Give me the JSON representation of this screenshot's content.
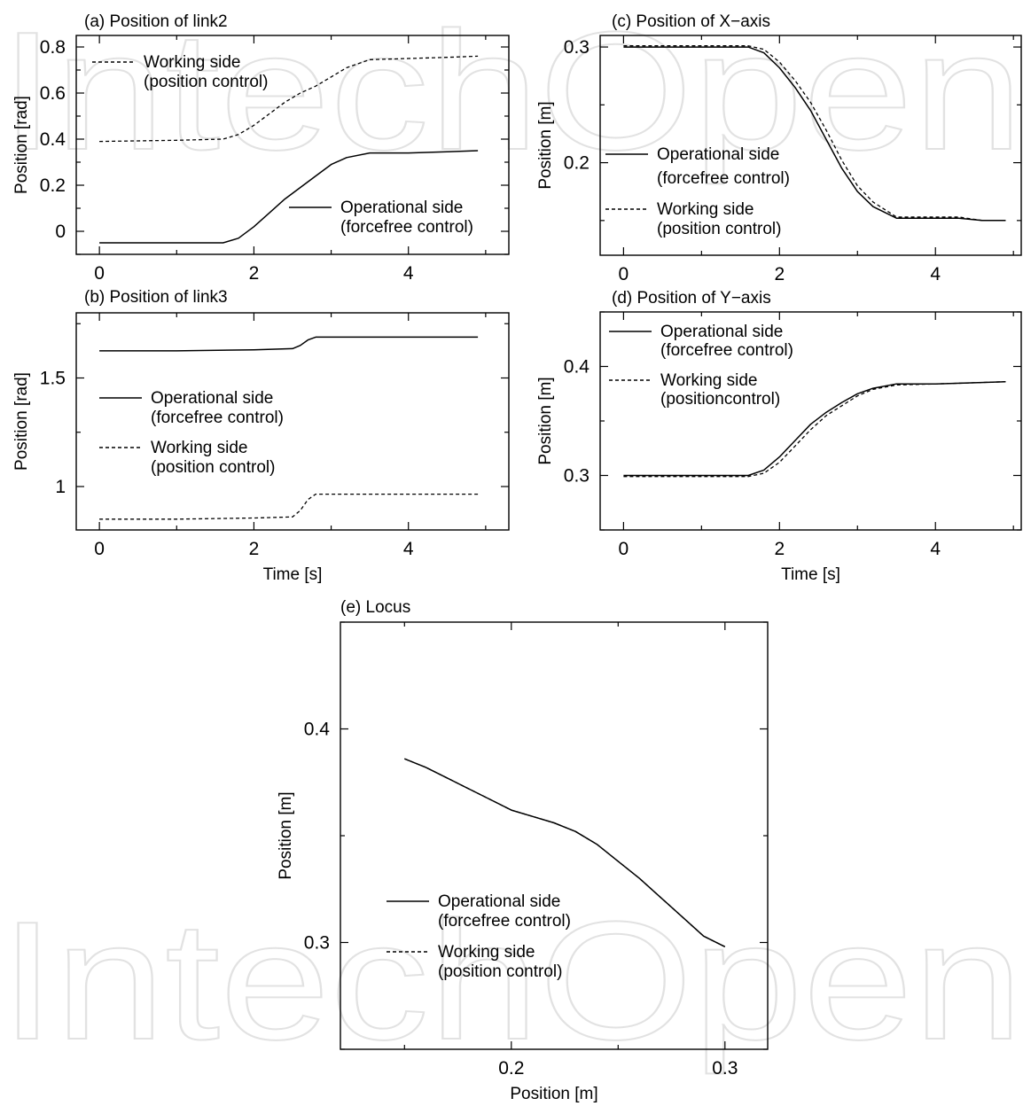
{
  "watermark": "IntechOpen",
  "chart_data": [
    {
      "id": "a",
      "type": "line",
      "title": "(a) Position of link2",
      "xlabel": "",
      "ylabel": "Position [rad]",
      "xlim": [
        -0.3,
        5.3
      ],
      "ylim": [
        -0.1,
        0.85
      ],
      "xticks": [
        0,
        2,
        4
      ],
      "yticks": [
        0,
        0.2,
        0.4,
        0.6,
        0.8
      ],
      "xtick_labels": [
        "0",
        "2",
        "4"
      ],
      "ytick_labels": [
        "0",
        "0.2",
        "0.4",
        "0.6",
        "0.8"
      ],
      "legend": [
        {
          "series": 1,
          "lines": [
            "Working side",
            "(position control)"
          ],
          "placement": "top-left"
        },
        {
          "series": 0,
          "lines": [
            "Operational side",
            "(forcefree control)"
          ],
          "placement": "bottom-right"
        }
      ],
      "series": [
        {
          "name": "Operational side (forcefree control)",
          "style": "solid",
          "x": [
            0,
            1.0,
            1.6,
            1.8,
            2.0,
            2.2,
            2.4,
            2.6,
            2.8,
            3.0,
            3.2,
            3.5,
            4.0,
            4.5,
            4.9
          ],
          "y": [
            -0.05,
            -0.05,
            -0.05,
            -0.03,
            0.02,
            0.08,
            0.14,
            0.19,
            0.24,
            0.29,
            0.32,
            0.34,
            0.34,
            0.345,
            0.35
          ]
        },
        {
          "name": "Working side (position control)",
          "style": "dashed",
          "x": [
            0,
            1.0,
            1.6,
            1.8,
            2.0,
            2.2,
            2.4,
            2.6,
            2.8,
            3.0,
            3.2,
            3.5,
            4.0,
            4.5,
            4.9
          ],
          "y": [
            0.39,
            0.395,
            0.4,
            0.42,
            0.46,
            0.51,
            0.56,
            0.6,
            0.63,
            0.67,
            0.71,
            0.745,
            0.75,
            0.755,
            0.76
          ]
        }
      ]
    },
    {
      "id": "b",
      "type": "line",
      "title": "(b) Position of link3",
      "xlabel": "Time [s]",
      "ylabel": "Position [rad]",
      "xlim": [
        -0.3,
        5.3
      ],
      "ylim": [
        0.8,
        1.8
      ],
      "xticks": [
        0,
        2,
        4
      ],
      "yticks": [
        1,
        1.5
      ],
      "xtick_labels": [
        "0",
        "2",
        "4"
      ],
      "ytick_labels": [
        "1",
        "1.5"
      ],
      "legend": [
        {
          "series": 0,
          "lines": [
            "Operational side",
            "(forcefree control)"
          ],
          "placement": "middle-left"
        },
        {
          "series": 1,
          "lines": [
            "Working side",
            "(position control)"
          ],
          "placement": "middle-left"
        }
      ],
      "series": [
        {
          "name": "Operational side (forcefree control)",
          "style": "solid",
          "x": [
            0,
            1.0,
            2.0,
            2.5,
            2.6,
            2.7,
            2.8,
            3.5,
            4.0,
            4.9
          ],
          "y": [
            1.625,
            1.625,
            1.63,
            1.635,
            1.65,
            1.675,
            1.688,
            1.688,
            1.688,
            1.688
          ]
        },
        {
          "name": "Working side (position control)",
          "style": "dashed",
          "x": [
            0,
            1.0,
            2.0,
            2.5,
            2.6,
            2.7,
            2.8,
            3.5,
            4.0,
            4.9
          ],
          "y": [
            0.85,
            0.85,
            0.855,
            0.86,
            0.89,
            0.94,
            0.965,
            0.965,
            0.965,
            0.965
          ]
        }
      ]
    },
    {
      "id": "c",
      "type": "line",
      "title": "(c) Position of X−axis",
      "xlabel": "",
      "ylabel": "Position [m]",
      "xlim": [
        -0.3,
        5.1
      ],
      "ylim": [
        0.12,
        0.31
      ],
      "xticks": [
        0,
        2,
        4
      ],
      "yticks": [
        0.2,
        0.3
      ],
      "xtick_labels": [
        "0",
        "2",
        "4"
      ],
      "ytick_labels": [
        "0.2",
        "0.3"
      ],
      "legend": [
        {
          "series": 0,
          "lines": [
            "Operational side",
            "(forcefree control)"
          ],
          "placement": "middle-left"
        },
        {
          "series": 1,
          "lines": [
            "Working side",
            "(position control)"
          ],
          "placement": "bottom-left"
        }
      ],
      "series": [
        {
          "name": "Operational side (forcefree control)",
          "style": "solid",
          "x": [
            0,
            1.0,
            1.6,
            1.8,
            2.0,
            2.2,
            2.4,
            2.6,
            2.8,
            3.0,
            3.2,
            3.5,
            4.0,
            4.3,
            4.6,
            4.9
          ],
          "y": [
            0.3,
            0.3,
            0.3,
            0.295,
            0.282,
            0.265,
            0.245,
            0.22,
            0.195,
            0.175,
            0.162,
            0.152,
            0.152,
            0.152,
            0.15,
            0.15
          ]
        },
        {
          "name": "Working side (position control)",
          "style": "dashed",
          "x": [
            0,
            1.0,
            1.6,
            1.8,
            2.0,
            2.2,
            2.4,
            2.6,
            2.8,
            3.0,
            3.2,
            3.5,
            4.0,
            4.3,
            4.6,
            4.9
          ],
          "y": [
            0.301,
            0.301,
            0.301,
            0.298,
            0.287,
            0.271,
            0.252,
            0.228,
            0.202,
            0.18,
            0.166,
            0.153,
            0.153,
            0.153,
            0.15,
            0.15
          ]
        }
      ]
    },
    {
      "id": "d",
      "type": "line",
      "title": "(d) Position of Y−axis",
      "xlabel": "Time [s]",
      "ylabel": "Position [m]",
      "xlim": [
        -0.3,
        5.1
      ],
      "ylim": [
        0.25,
        0.45
      ],
      "xticks": [
        0,
        2,
        4
      ],
      "yticks": [
        0.3,
        0.4
      ],
      "xtick_labels": [
        "0",
        "2",
        "4"
      ],
      "ytick_labels": [
        "0.3",
        "0.4"
      ],
      "legend": [
        {
          "series": 0,
          "lines": [
            "Operational side",
            "(forcefree control)"
          ],
          "placement": "top-left"
        },
        {
          "series": 1,
          "lines": [
            "Working side",
            "(positioncontrol)"
          ],
          "placement": "top-left"
        }
      ],
      "series": [
        {
          "name": "Operational side (forcefree control)",
          "style": "solid",
          "x": [
            0,
            1.0,
            1.6,
            1.8,
            2.0,
            2.2,
            2.4,
            2.6,
            2.8,
            3.0,
            3.2,
            3.5,
            4.0,
            4.5,
            4.9
          ],
          "y": [
            0.3,
            0.3,
            0.3,
            0.305,
            0.317,
            0.332,
            0.347,
            0.358,
            0.367,
            0.375,
            0.38,
            0.384,
            0.384,
            0.385,
            0.386
          ]
        },
        {
          "name": "Working side (positioncontrol)",
          "style": "dashed",
          "x": [
            0,
            1.0,
            1.6,
            1.8,
            2.0,
            2.2,
            2.4,
            2.6,
            2.8,
            3.0,
            3.2,
            3.5,
            4.0,
            4.5,
            4.9
          ],
          "y": [
            0.299,
            0.299,
            0.299,
            0.302,
            0.312,
            0.327,
            0.342,
            0.355,
            0.364,
            0.373,
            0.379,
            0.383,
            0.384,
            0.385,
            0.386
          ]
        }
      ]
    },
    {
      "id": "e",
      "type": "line",
      "title": "(e) Locus",
      "xlabel": "Position [m]",
      "ylabel": "Position [m]",
      "xlim": [
        0.12,
        0.32
      ],
      "ylim": [
        0.25,
        0.45
      ],
      "xticks": [
        0.2,
        0.3
      ],
      "yticks": [
        0.3,
        0.4
      ],
      "xtick_labels": [
        "0.2",
        "0.3"
      ],
      "ytick_labels": [
        "0.3",
        "0.4"
      ],
      "legend": [
        {
          "series": 0,
          "lines": [
            "Operational side",
            "(forcefree control)"
          ],
          "placement": "bottom-left"
        },
        {
          "series": 1,
          "lines": [
            "Working side",
            "(position control)"
          ],
          "placement": "bottom-left"
        }
      ],
      "series": [
        {
          "name": "Operational side (forcefree control)",
          "style": "solid",
          "x": [
            0.15,
            0.16,
            0.17,
            0.18,
            0.19,
            0.2,
            0.21,
            0.22,
            0.23,
            0.24,
            0.25,
            0.26,
            0.27,
            0.28,
            0.29,
            0.3
          ],
          "y": [
            0.386,
            0.382,
            0.377,
            0.372,
            0.367,
            0.362,
            0.359,
            0.356,
            0.352,
            0.346,
            0.338,
            0.33,
            0.321,
            0.312,
            0.303,
            0.298
          ]
        },
        {
          "name": "Working side (position control)",
          "style": "dashed",
          "x": [
            0.15,
            0.16,
            0.17,
            0.18,
            0.19,
            0.2,
            0.21,
            0.22,
            0.23,
            0.24,
            0.25,
            0.26,
            0.27,
            0.28,
            0.29,
            0.3
          ],
          "y": [
            0.386,
            0.382,
            0.377,
            0.372,
            0.367,
            0.362,
            0.359,
            0.356,
            0.352,
            0.346,
            0.338,
            0.33,
            0.321,
            0.312,
            0.303,
            0.298
          ]
        }
      ]
    }
  ]
}
